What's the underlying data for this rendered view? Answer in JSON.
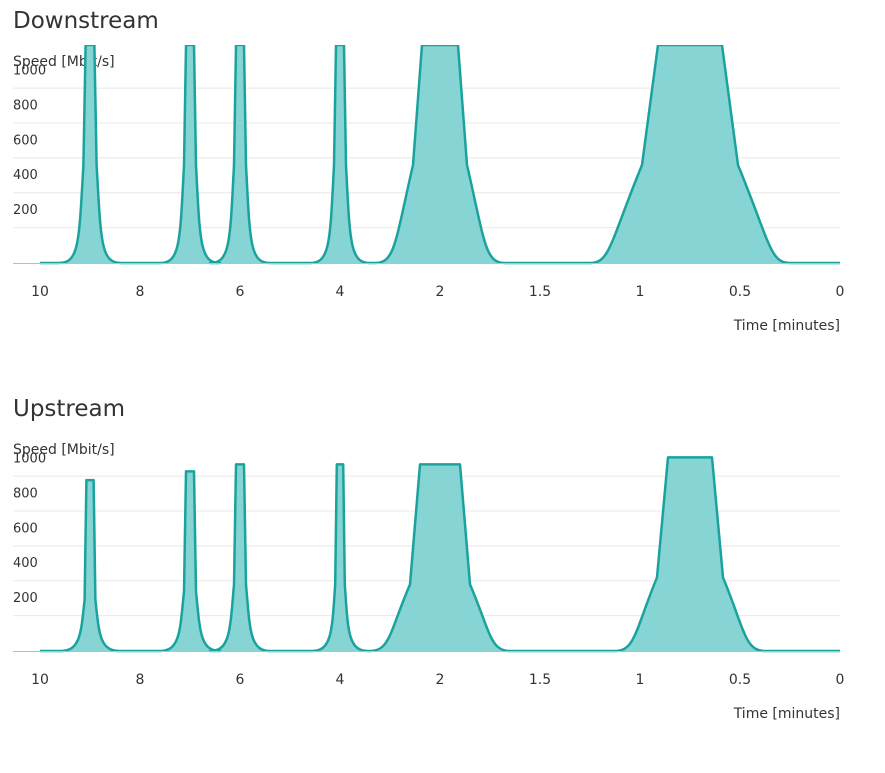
{
  "colors": {
    "area_fill": "#86d4d3",
    "line": "#1aa39d",
    "grid": "#e8e8e8",
    "baseline": "#bdbdbd"
  },
  "chart_data": [
    {
      "type": "area",
      "title": "Downstream",
      "ylabel": "Speed [Mbit/s]",
      "xlabel": "Time [minutes]",
      "x_tick_labels": [
        "10",
        "8",
        "6",
        "4",
        "2",
        "1.5",
        "1",
        "0.5",
        "0"
      ],
      "y_ticks": [
        200,
        400,
        600,
        800,
        1000
      ],
      "ylim": [
        0,
        1250
      ],
      "grid": true,
      "series": [
        {
          "peaks": [
            {
              "at": "9",
              "value": 1250
            },
            {
              "at": "7",
              "value": 1250
            },
            {
              "at": "6",
              "value": 1250
            },
            {
              "at": "4",
              "value": 1250
            },
            {
              "at": "2",
              "value": 1250
            },
            {
              "at": "0.75",
              "value": 1250
            }
          ]
        }
      ]
    },
    {
      "type": "area",
      "title": "Upstream",
      "ylabel": "Speed [Mbit/s]",
      "xlabel": "Time [minutes]",
      "x_tick_labels": [
        "10",
        "8",
        "6",
        "4",
        "2",
        "1.5",
        "1",
        "0.5",
        "0"
      ],
      "y_ticks": [
        200,
        400,
        600,
        800,
        1000
      ],
      "ylim": [
        0,
        1250
      ],
      "grid": true,
      "series": [
        {
          "peaks": [
            {
              "at": "9",
              "value": 980
            },
            {
              "at": "7",
              "value": 1030
            },
            {
              "at": "6",
              "value": 1070
            },
            {
              "at": "4",
              "value": 1070
            },
            {
              "at": "2",
              "value": 1070
            },
            {
              "at": "0.75",
              "value": 1110
            }
          ]
        }
      ]
    }
  ]
}
